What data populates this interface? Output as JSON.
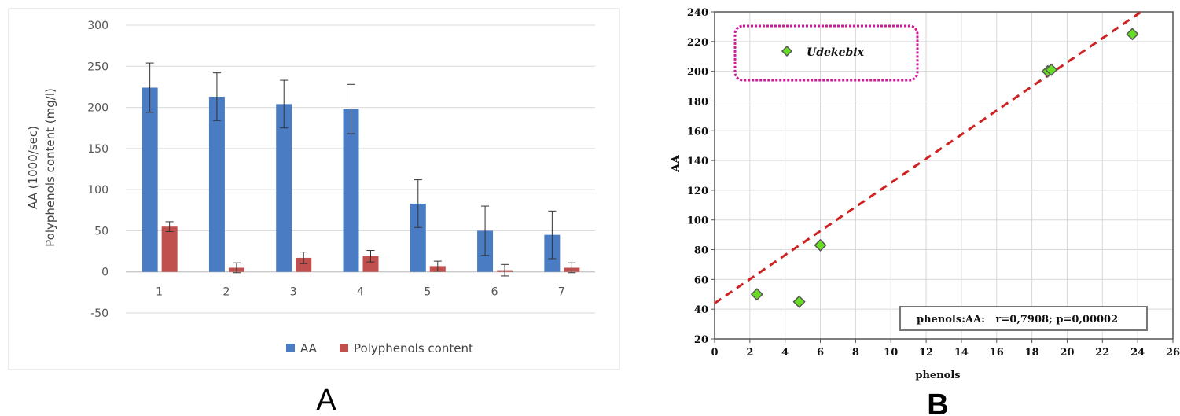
{
  "panel_labels": {
    "a": "A",
    "b": "B"
  },
  "chart_data": [
    {
      "type": "bar",
      "ylabel_line1": "AA (1000/sec)",
      "ylabel_line2": "Polyphenols content (mg/l)",
      "xlabel": "",
      "ylim": [
        -50,
        300
      ],
      "yticks": [
        -50,
        0,
        50,
        100,
        150,
        200,
        250,
        300
      ],
      "grid": true,
      "legend_position": "bottom",
      "categories": [
        "1",
        "2",
        "3",
        "4",
        "5",
        "6",
        "7"
      ],
      "series": [
        {
          "name": "AA",
          "color": "#4a7cc4",
          "values": [
            224,
            213,
            204,
            198,
            83,
            50,
            45
          ],
          "errors": [
            30,
            29,
            29,
            30,
            29,
            30,
            29
          ]
        },
        {
          "name": "Polyphenols content",
          "color": "#c0504d",
          "values": [
            55,
            5,
            17,
            19,
            7,
            2,
            5
          ],
          "errors": [
            6,
            6,
            7,
            7,
            6,
            7,
            6
          ]
        }
      ]
    },
    {
      "type": "scatter",
      "xlabel": "phenols",
      "ylabel": "AA",
      "xlim": [
        0,
        26
      ],
      "ylim": [
        20,
        240
      ],
      "xticks": [
        0,
        2,
        4,
        6,
        8,
        10,
        12,
        14,
        16,
        18,
        20,
        22,
        24,
        26
      ],
      "yticks": [
        20,
        40,
        60,
        80,
        100,
        120,
        140,
        160,
        180,
        200,
        220,
        240
      ],
      "grid": true,
      "marker_color": "#66dd22",
      "line_color": "#cc2222",
      "points": [
        {
          "x": 2.4,
          "y": 50
        },
        {
          "x": 4.8,
          "y": 45
        },
        {
          "x": 6.0,
          "y": 83
        },
        {
          "x": 18.9,
          "y": 200
        },
        {
          "x": 19.1,
          "y": 201
        },
        {
          "x": 23.7,
          "y": 225
        }
      ],
      "fit_line": {
        "intercept": 44,
        "slope": 8.1
      },
      "legend_label": "Udekebix",
      "legend_border_color": "#cc1a99",
      "annotation": "phenols:AA:   r=0,7908; p=0,00002"
    }
  ]
}
